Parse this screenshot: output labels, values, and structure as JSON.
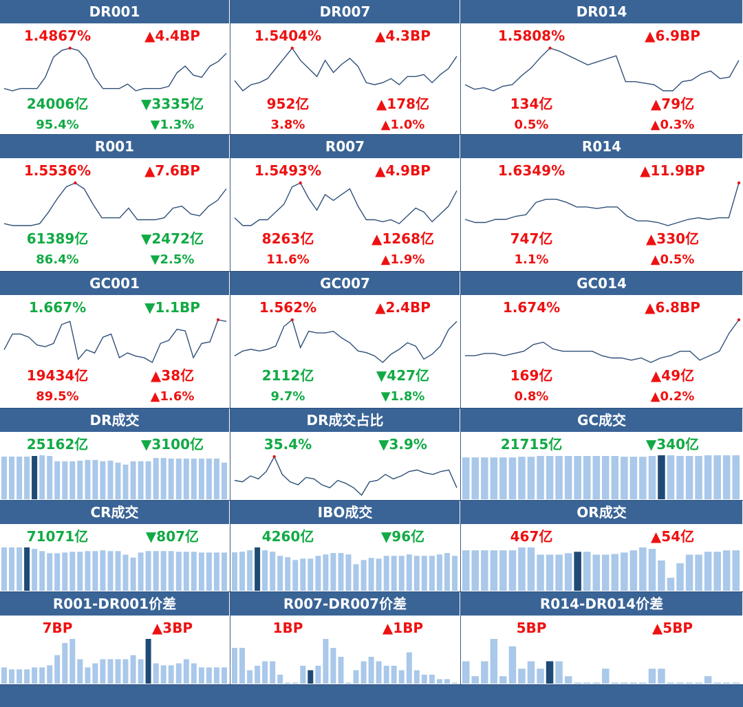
{
  "rows": [
    {
      "kind": "line",
      "cells": [
        {
          "title": "DR001",
          "rate": "1.4867%",
          "rate_color": "red",
          "bp": "▲4.4BP",
          "bp_color": "red",
          "vol": "24006亿",
          "vol_color": "green",
          "dvol": "▼3335亿",
          "dvol_color": "green",
          "share": "95.4%",
          "share_color": "green",
          "dshare": "▼1.3%",
          "dshare_color": "green",
          "chart_data": {
            "type": "line",
            "values": [
              1.33,
              1.32,
              1.33,
              1.33,
              1.33,
              1.38,
              1.47,
              1.5,
              1.51,
              1.5,
              1.46,
              1.38,
              1.33,
              1.33,
              1.33,
              1.35,
              1.32,
              1.33,
              1.33,
              1.33,
              1.34,
              1.4,
              1.43,
              1.39,
              1.38,
              1.43,
              1.45,
              1.487
            ]
          }
        },
        {
          "title": "DR007",
          "rate": "1.5404%",
          "rate_color": "red",
          "bp": "▲4.3BP",
          "bp_color": "red",
          "vol": "952亿",
          "vol_color": "red",
          "dvol": "▲178亿",
          "dvol_color": "red",
          "share": "3.8%",
          "share_color": "red",
          "dshare": "▲1.0%",
          "dshare_color": "red",
          "chart_data": {
            "type": "line",
            "values": [
              1.38,
              1.33,
              1.36,
              1.37,
              1.39,
              1.44,
              1.49,
              1.54,
              1.48,
              1.44,
              1.4,
              1.48,
              1.42,
              1.46,
              1.49,
              1.45,
              1.37,
              1.36,
              1.37,
              1.39,
              1.36,
              1.4,
              1.4,
              1.41,
              1.37,
              1.41,
              1.44,
              1.5
            ]
          }
        },
        {
          "title": "DR014",
          "rate": "1.5808%",
          "rate_color": "red",
          "bp": "▲6.9BP",
          "bp_color": "red",
          "vol": "134亿",
          "vol_color": "red",
          "dvol": "▲79亿",
          "dvol_color": "red",
          "share": "0.5%",
          "share_color": "red",
          "dshare": "▲0.3%",
          "dshare_color": "red",
          "chart_data": {
            "type": "line",
            "values": [
              1.34,
              1.31,
              1.32,
              1.3,
              1.33,
              1.34,
              1.4,
              1.45,
              1.52,
              1.58,
              1.56,
              1.53,
              1.5,
              1.47,
              1.49,
              1.51,
              1.53,
              1.36,
              1.36,
              1.35,
              1.34,
              1.3,
              1.3,
              1.36,
              1.37,
              1.41,
              1.43,
              1.38,
              1.39,
              1.5
            ]
          }
        }
      ]
    },
    {
      "kind": "line",
      "cells": [
        {
          "title": "R001",
          "rate": "1.5536%",
          "rate_color": "red",
          "bp": "▲7.6BP",
          "bp_color": "red",
          "vol": "61389亿",
          "vol_color": "green",
          "dvol": "▼2472亿",
          "dvol_color": "green",
          "share": "86.4%",
          "share_color": "green",
          "dshare": "▼2.5%",
          "dshare_color": "green",
          "chart_data": {
            "type": "line",
            "values": [
              1.34,
              1.33,
              1.33,
              1.33,
              1.34,
              1.4,
              1.47,
              1.53,
              1.55,
              1.52,
              1.44,
              1.37,
              1.37,
              1.37,
              1.42,
              1.36,
              1.36,
              1.36,
              1.37,
              1.42,
              1.43,
              1.39,
              1.38,
              1.43,
              1.46,
              1.52
            ]
          }
        },
        {
          "title": "R007",
          "rate": "1.5493%",
          "rate_color": "red",
          "bp": "▲4.9BP",
          "bp_color": "red",
          "vol": "8263亿",
          "vol_color": "red",
          "dvol": "▲1268亿",
          "dvol_color": "red",
          "share": "11.6%",
          "share_color": "red",
          "dshare": "▲1.9%",
          "dshare_color": "red",
          "chart_data": {
            "type": "line",
            "values": [
              1.37,
              1.33,
              1.33,
              1.36,
              1.36,
              1.4,
              1.44,
              1.53,
              1.55,
              1.47,
              1.41,
              1.49,
              1.46,
              1.49,
              1.52,
              1.43,
              1.36,
              1.36,
              1.35,
              1.36,
              1.34,
              1.38,
              1.42,
              1.4,
              1.35,
              1.39,
              1.43,
              1.51
            ]
          }
        },
        {
          "title": "R014",
          "rate": "1.6349%",
          "rate_color": "red",
          "bp": "▲11.9BP",
          "bp_color": "red",
          "vol": "747亿",
          "vol_color": "red",
          "dvol": "▲330亿",
          "dvol_color": "red",
          "share": "1.1%",
          "share_color": "red",
          "dshare": "▲0.5%",
          "dshare_color": "red",
          "chart_data": {
            "type": "line",
            "values": [
              1.4,
              1.38,
              1.38,
              1.4,
              1.4,
              1.42,
              1.43,
              1.51,
              1.53,
              1.53,
              1.51,
              1.48,
              1.48,
              1.47,
              1.48,
              1.48,
              1.42,
              1.39,
              1.39,
              1.38,
              1.36,
              1.38,
              1.4,
              1.41,
              1.4,
              1.41,
              1.41,
              1.635
            ]
          }
        }
      ]
    },
    {
      "kind": "line",
      "cells": [
        {
          "title": "GC001",
          "rate": "1.667%",
          "rate_color": "green",
          "bp": "▼1.1BP",
          "bp_color": "green",
          "vol": "19434亿",
          "vol_color": "red",
          "dvol": "▲38亿",
          "dvol_color": "red",
          "share": "89.5%",
          "share_color": "red",
          "dshare": "▲1.6%",
          "dshare_color": "red",
          "chart_data": {
            "type": "line",
            "values": [
              1.52,
              1.62,
              1.62,
              1.6,
              1.55,
              1.54,
              1.56,
              1.68,
              1.7,
              1.46,
              1.52,
              1.5,
              1.6,
              1.62,
              1.47,
              1.5,
              1.48,
              1.47,
              1.44,
              1.56,
              1.58,
              1.65,
              1.64,
              1.47,
              1.56,
              1.57,
              1.71,
              1.7
            ]
          }
        },
        {
          "title": "GC007",
          "rate": "1.562%",
          "rate_color": "red",
          "bp": "▲2.4BP",
          "bp_color": "red",
          "vol": "2112亿",
          "vol_color": "green",
          "dvol": "▼427亿",
          "dvol_color": "green",
          "share": "9.7%",
          "share_color": "green",
          "dshare": "▼1.8%",
          "dshare_color": "green",
          "chart_data": {
            "type": "line",
            "values": [
              1.34,
              1.37,
              1.38,
              1.37,
              1.38,
              1.4,
              1.52,
              1.56,
              1.39,
              1.49,
              1.48,
              1.48,
              1.49,
              1.45,
              1.42,
              1.37,
              1.36,
              1.34,
              1.3,
              1.35,
              1.38,
              1.42,
              1.4,
              1.32,
              1.35,
              1.4,
              1.5,
              1.55
            ]
          }
        },
        {
          "title": "GC014",
          "rate": "1.674%",
          "rate_color": "red",
          "bp": "▲6.8BP",
          "bp_color": "red",
          "vol": "169亿",
          "vol_color": "red",
          "dvol": "▲49亿",
          "dvol_color": "red",
          "share": "0.8%",
          "share_color": "red",
          "dshare": "▲0.2%",
          "dshare_color": "red",
          "chart_data": {
            "type": "line",
            "values": [
              1.46,
              1.46,
              1.47,
              1.47,
              1.46,
              1.47,
              1.48,
              1.51,
              1.52,
              1.49,
              1.48,
              1.48,
              1.48,
              1.48,
              1.46,
              1.45,
              1.45,
              1.44,
              1.45,
              1.43,
              1.45,
              1.46,
              1.48,
              1.48,
              1.44,
              1.46,
              1.48,
              1.56,
              1.62
            ]
          }
        }
      ]
    },
    {
      "kind": "mixed",
      "cells": [
        {
          "title": "DR成交",
          "rate": "25162亿",
          "rate_color": "green",
          "bp": "▼3100亿",
          "bp_color": "green",
          "chart_data": {
            "type": "bar",
            "highlight": 4,
            "values": [
              64,
              64,
              64,
              64,
              65,
              66,
              65,
              57,
              57,
              57,
              58,
              59,
              59,
              57,
              58,
              55,
              52,
              57,
              57,
              57,
              62,
              62,
              61,
              61,
              61,
              61,
              61,
              61,
              61,
              55
            ]
          }
        },
        {
          "title": "DR成交占比",
          "rate": "35.4%",
          "rate_color": "green",
          "bp": "▼3.9%",
          "bp_color": "green",
          "chart_data": {
            "type": "line",
            "values": [
              29,
              28,
              32,
              30,
              35,
              45,
              33,
              28,
              26,
              31,
              30,
              26,
              24,
              29,
              27,
              24,
              19,
              28,
              29,
              33,
              30,
              32,
              35,
              36,
              34,
              33,
              35,
              36,
              24
            ]
          }
        },
        {
          "title": "GC成交",
          "rate": "21715亿",
          "rate_color": "green",
          "bp": "▼340亿",
          "bp_color": "green",
          "chart_data": {
            "type": "bar",
            "highlight": 21,
            "values": [
              58,
              58,
              58,
              58,
              58,
              58,
              59,
              59,
              60,
              60,
              60,
              60,
              60,
              60,
              60,
              60,
              60,
              59,
              59,
              59,
              60,
              61,
              61,
              60,
              60,
              60,
              61,
              61,
              61,
              61
            ]
          }
        }
      ]
    },
    {
      "kind": "bar",
      "cells": [
        {
          "title": "CR成交",
          "rate": "71071亿",
          "rate_color": "green",
          "bp": "▼807亿",
          "bp_color": "green",
          "chart_data": {
            "type": "bar",
            "highlight": 3,
            "values": [
              60,
              60,
              60,
              60,
              58,
              55,
              52,
              52,
              53,
              54,
              54,
              55,
              55,
              56,
              55,
              55,
              50,
              46,
              53,
              55,
              55,
              55,
              55,
              54,
              54,
              54,
              53,
              53,
              53,
              53
            ]
          }
        },
        {
          "title": "IBO成交",
          "rate": "4260亿",
          "rate_color": "green",
          "bp": "▼96亿",
          "bp_color": "green",
          "chart_data": {
            "type": "bar",
            "highlight": 3,
            "values": [
              55,
              56,
              58,
              62,
              58,
              56,
              50,
              48,
              44,
              46,
              46,
              50,
              52,
              54,
              54,
              52,
              38,
              44,
              47,
              46,
              50,
              50,
              50,
              52,
              50,
              50,
              50,
              52,
              54,
              50
            ]
          }
        },
        {
          "title": "OR成交",
          "rate": "467亿",
          "rate_color": "red",
          "bp": "▲54亿",
          "bp_color": "red",
          "chart_data": {
            "type": "bar",
            "highlight": 12,
            "values": [
              56,
              56,
              56,
              56,
              56,
              56,
              60,
              60,
              50,
              50,
              50,
              52,
              54,
              54,
              50,
              50,
              51,
              53,
              56,
              60,
              58,
              42,
              18,
              38,
              50,
              50,
              54,
              54,
              56,
              56
            ]
          }
        }
      ]
    },
    {
      "kind": "bar",
      "cells": [
        {
          "title": "R001-DR001价差",
          "rate": "7BP",
          "rate_color": "red",
          "bp": "▲3BP",
          "bp_color": "red",
          "chart_data": {
            "type": "bar",
            "highlight": 19,
            "values": [
              4,
              3.5,
              3.5,
              3.5,
              4,
              4,
              4.5,
              7,
              10,
              11,
              6,
              4,
              5,
              6,
              6,
              6,
              6,
              7,
              6,
              11,
              5,
              4.5,
              4.5,
              5,
              6,
              5,
              4,
              4,
              4,
              4
            ]
          }
        },
        {
          "title": "R007-DR007价差",
          "rate": "1BP",
          "rate_color": "red",
          "bp": "▲1BP",
          "bp_color": "red",
          "chart_data": {
            "type": "bar",
            "highlight": 10,
            "values": [
              8,
              8,
              3,
              4,
              5,
              5,
              2,
              0,
              0,
              4,
              3,
              4,
              10,
              8,
              6,
              0,
              3,
              5,
              6,
              5,
              4,
              4,
              3,
              7,
              3,
              2,
              2,
              1,
              1,
              0
            ]
          }
        },
        {
          "title": "R014-DR014价差",
          "rate": "5BP",
          "rate_color": "red",
          "bp": "▲5BP",
          "bp_color": "red",
          "chart_data": {
            "type": "bar",
            "highlight": 9,
            "values": [
              3,
              1,
              3,
              6,
              1,
              5,
              2,
              3,
              2,
              3,
              3,
              1,
              0,
              0,
              0,
              2,
              0,
              0,
              0,
              0,
              2,
              2,
              0,
              0,
              0,
              0,
              1,
              0,
              0,
              0
            ]
          }
        }
      ]
    }
  ],
  "colors": {
    "header": "#3a6496",
    "bar": "#a9c8ea",
    "bar_highlight": "#1f4a75",
    "line": "#2e4f78",
    "marker": "#e01818",
    "red": "#ee1111",
    "green": "#11aa44"
  }
}
